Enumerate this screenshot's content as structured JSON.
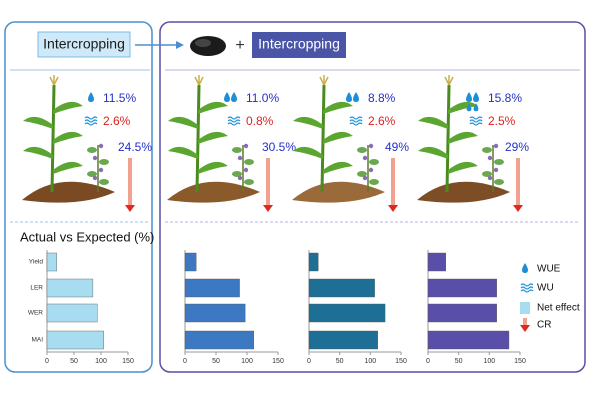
{
  "left_label": "Intercropping",
  "right_label": "Intercropping",
  "plus": "+",
  "chart_title": "Actual vs Expected (%)",
  "categories": [
    "Yield",
    "LER",
    "WER",
    "MAI"
  ],
  "xlim": [
    0,
    150
  ],
  "xticks": [
    0,
    50,
    100,
    150
  ],
  "legend": [
    "WUE",
    "WU",
    "Net effect",
    "CR"
  ],
  "panels": [
    {
      "wue": "11.5%",
      "wu": "2.6%",
      "cr": "24.5%",
      "color": "#a8dcf0",
      "bars": [
        18,
        85,
        93,
        105
      ]
    },
    {
      "wue": "11.0%",
      "wu": "0.8%",
      "cr": "30.5%",
      "color": "#3d78c2",
      "bars": [
        18,
        88,
        97,
        111
      ]
    },
    {
      "wue": "8.8%",
      "wu": "2.6%",
      "cr": "49%",
      "color": "#1e6f96",
      "bars": [
        15,
        107,
        124,
        112
      ]
    },
    {
      "wue": "15.8%",
      "wu": "2.5%",
      "cr": "29%",
      "color": "#5a4fa8",
      "bars": [
        29,
        112,
        112,
        132
      ]
    }
  ]
}
